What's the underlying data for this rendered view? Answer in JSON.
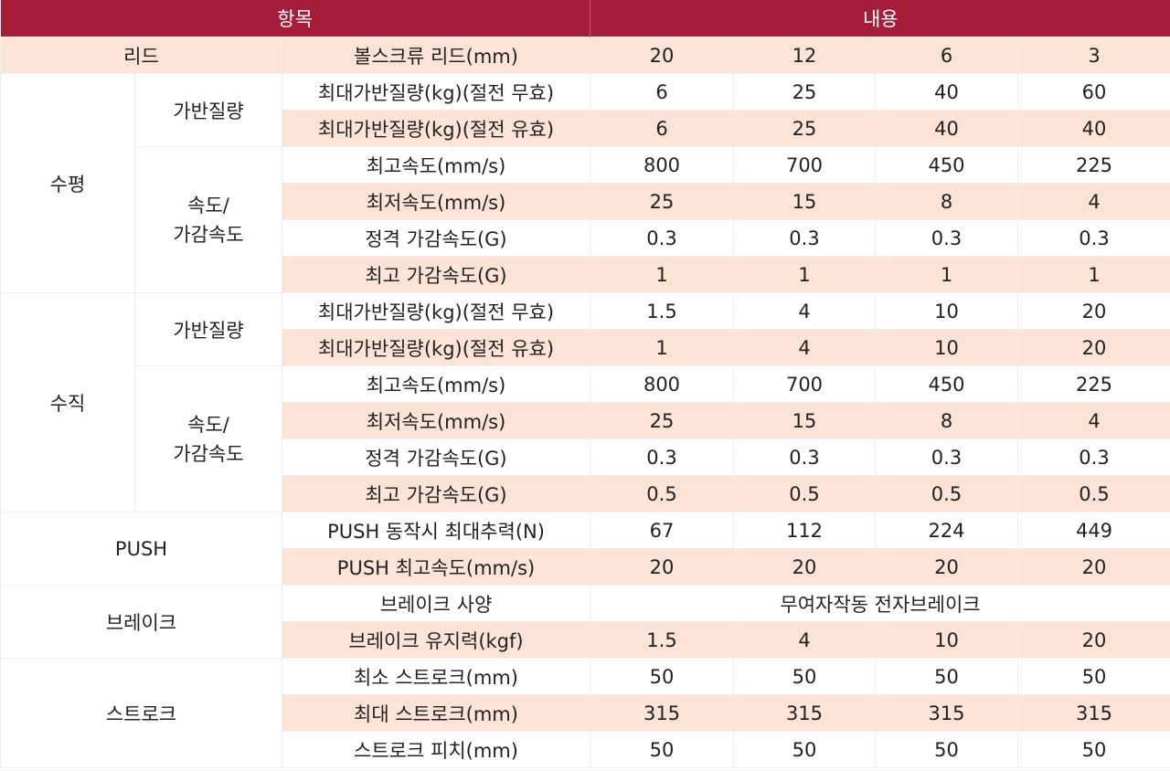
{
  "header": {
    "item": "항목",
    "content": "내용"
  },
  "lead": {
    "label": "리드",
    "sub": "볼스크류 리드(mm)",
    "values": [
      "20",
      "12",
      "6",
      "3"
    ]
  },
  "horizontal": {
    "label": "수평",
    "payload": {
      "label": "가반질량",
      "rows": [
        {
          "name": "최대가반질량(kg)(절전 무효)",
          "values": [
            "6",
            "25",
            "40",
            "60"
          ]
        },
        {
          "name": "최대가반질량(kg)(절전 유효)",
          "values": [
            "6",
            "25",
            "40",
            "40"
          ]
        }
      ]
    },
    "speed": {
      "label_line1": "속도/",
      "label_line2": "가감속도",
      "rows": [
        {
          "name": "최고속도(mm/s)",
          "values": [
            "800",
            "700",
            "450",
            "225"
          ]
        },
        {
          "name": "최저속도(mm/s)",
          "values": [
            "25",
            "15",
            "8",
            "4"
          ]
        },
        {
          "name": "정격 가감속도(G)",
          "values": [
            "0.3",
            "0.3",
            "0.3",
            "0.3"
          ]
        },
        {
          "name": "최고 가감속도(G)",
          "values": [
            "1",
            "1",
            "1",
            "1"
          ]
        }
      ]
    }
  },
  "vertical": {
    "label": "수직",
    "payload": {
      "label": "가반질량",
      "rows": [
        {
          "name": "최대가반질량(kg)(절전 무효)",
          "values": [
            "1.5",
            "4",
            "10",
            "20"
          ]
        },
        {
          "name": "최대가반질량(kg)(절전 유효)",
          "values": [
            "1",
            "4",
            "10",
            "20"
          ]
        }
      ]
    },
    "speed": {
      "label_line1": "속도/",
      "label_line2": "가감속도",
      "rows": [
        {
          "name": "최고속도(mm/s)",
          "values": [
            "800",
            "700",
            "450",
            "225"
          ]
        },
        {
          "name": "최저속도(mm/s)",
          "values": [
            "25",
            "15",
            "8",
            "4"
          ]
        },
        {
          "name": "정격 가감속도(G)",
          "values": [
            "0.3",
            "0.3",
            "0.3",
            "0.3"
          ]
        },
        {
          "name": "최고 가감속도(G)",
          "values": [
            "0.5",
            "0.5",
            "0.5",
            "0.5"
          ]
        }
      ]
    }
  },
  "push": {
    "label": "PUSH",
    "rows": [
      {
        "name": "PUSH 동작시 최대추력(N)",
        "values": [
          "67",
          "112",
          "224",
          "449"
        ]
      },
      {
        "name": "PUSH 최고속도(mm/s)",
        "values": [
          "20",
          "20",
          "20",
          "20"
        ]
      }
    ]
  },
  "brake": {
    "label": "브레이크",
    "spec": {
      "name": "브레이크 사양",
      "value": "무여자작동 전자브레이크"
    },
    "hold": {
      "name": "브레이크 유지력(kgf)",
      "values": [
        "1.5",
        "4",
        "10",
        "20"
      ]
    }
  },
  "stroke": {
    "label": "스트로크",
    "rows": [
      {
        "name": "최소 스트로크(mm)",
        "values": [
          "50",
          "50",
          "50",
          "50"
        ]
      },
      {
        "name": "최대 스트로크(mm)",
        "values": [
          "315",
          "315",
          "315",
          "315"
        ]
      },
      {
        "name": "스트로크 피치(mm)",
        "values": [
          "50",
          "50",
          "50",
          "50"
        ]
      }
    ]
  },
  "colors": {
    "header_bg": "#a51d38",
    "row_shade": "#fbe3d6",
    "border": "#eeeeee"
  }
}
